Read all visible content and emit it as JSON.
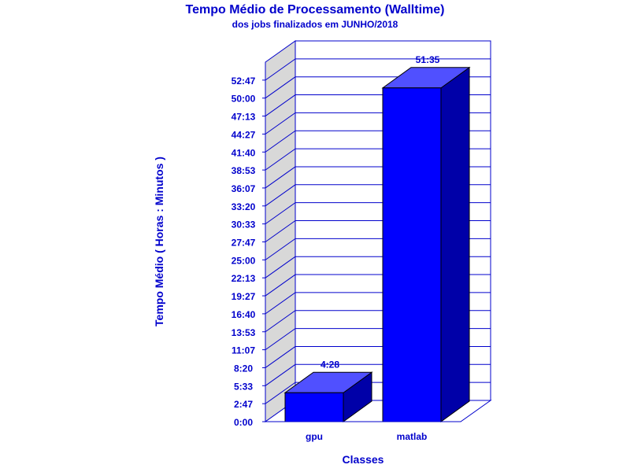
{
  "chart_data": {
    "type": "bar",
    "title": "Tempo Médio de Processamento (Walltime)",
    "subtitle": "dos jobs finalizados em JUNHO/2018",
    "xlabel": "Classes",
    "ylabel": "Tempo Médio ( Horas : Minutos )",
    "categories": [
      "gpu",
      "matlab"
    ],
    "values": [
      "4:28",
      "51:35"
    ],
    "value_minutes": [
      268,
      3095
    ],
    "yticks": [
      "0:00",
      "2:47",
      "5:33",
      "8:20",
      "11:07",
      "13:53",
      "16:40",
      "19:27",
      "22:13",
      "25:00",
      "27:47",
      "30:33",
      "33:20",
      "36:07",
      "38:53",
      "41:40",
      "44:27",
      "47:13",
      "50:00",
      "52:47"
    ],
    "ylim_minutes": [
      0,
      3334
    ],
    "grid": true,
    "legend": "none",
    "colors": {
      "text": "#0000cc",
      "bar_front": "#0000ff",
      "bar_top": "#5050ff",
      "bar_side": "#0000a8",
      "wall": "#d8d8d8",
      "axis": "#0000cc"
    }
  }
}
